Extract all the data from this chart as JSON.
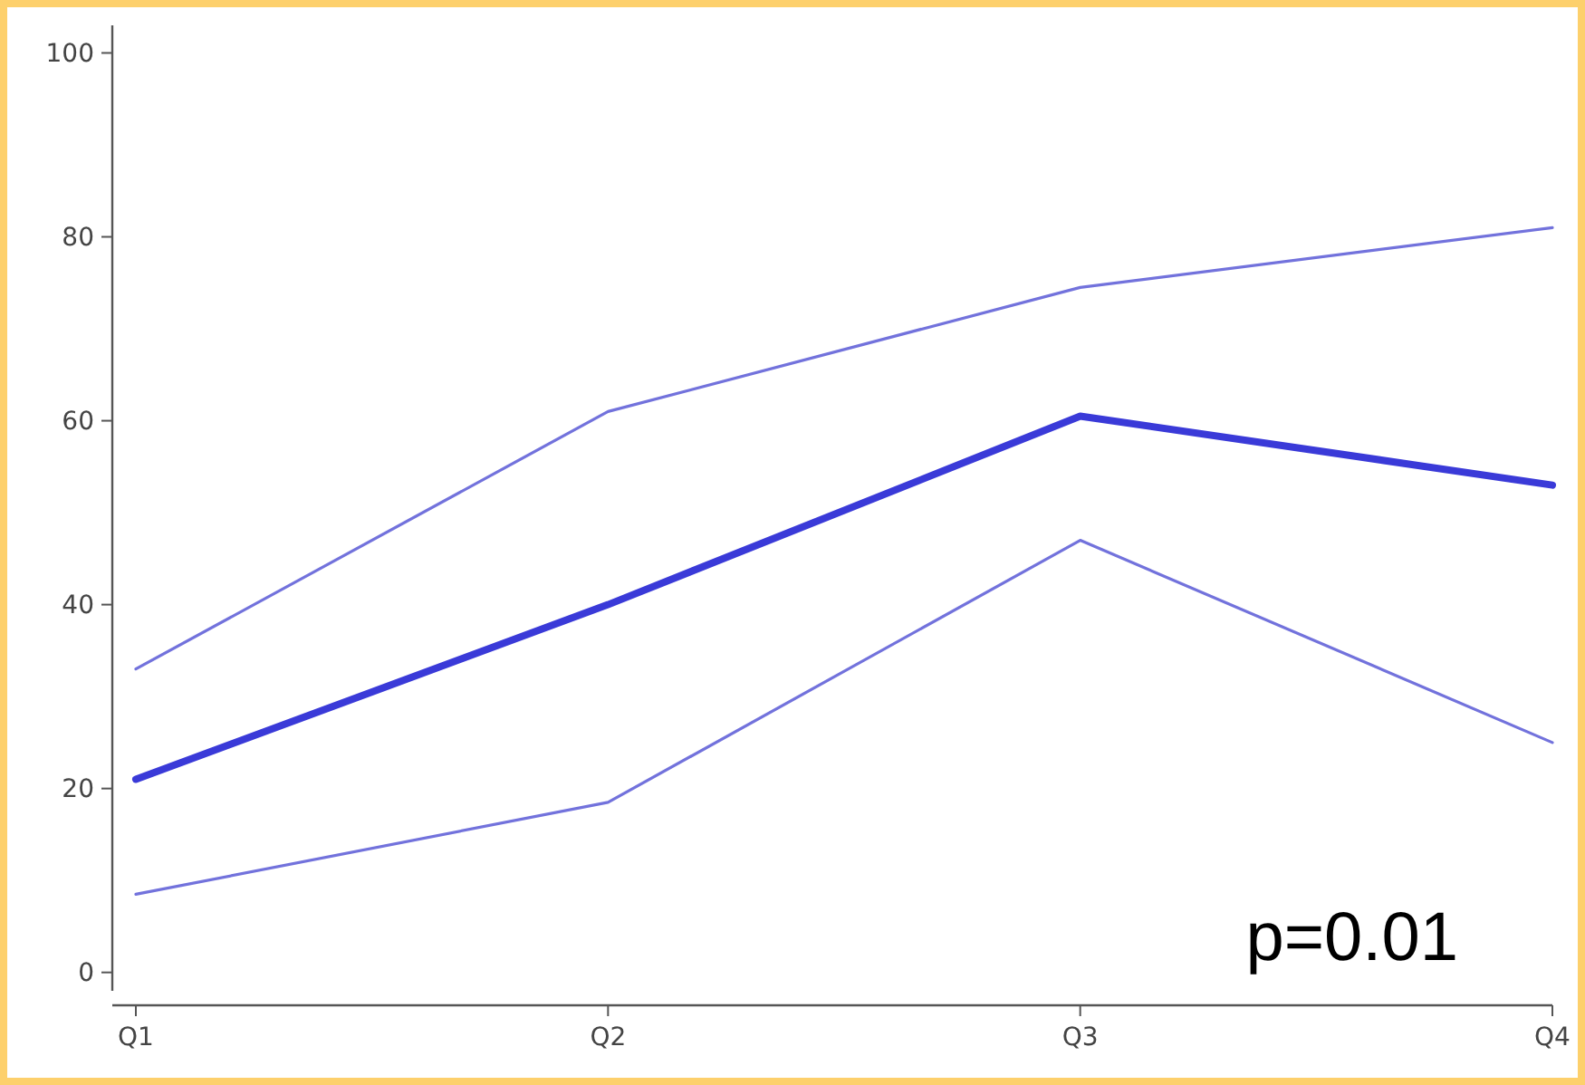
{
  "chart_data": {
    "type": "line",
    "categories": [
      "Q1",
      "Q2",
      "Q3",
      "Q4"
    ],
    "series": [
      {
        "color": "#7272dc",
        "values": [
          33,
          61,
          74.5,
          81
        ]
      },
      {
        "color": "#3a3ad8",
        "values": [
          21,
          40,
          60.5,
          53
        ]
      },
      {
        "color": "#7272dc",
        "values": [
          8.5,
          18.5,
          47,
          25
        ]
      }
    ],
    "ylim": [
      -2,
      103
    ],
    "yticks": [
      0,
      20,
      40,
      60,
      80,
      100
    ],
    "grid": false,
    "marker": "none",
    "line_style": "solid",
    "annotations": [
      "p=0.01"
    ]
  }
}
